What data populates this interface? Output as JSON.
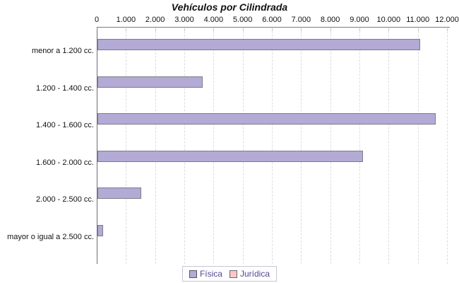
{
  "title": "Vehículos por Cilindrada",
  "legend": {
    "position": "bottom",
    "items": [
      {
        "label": "Física",
        "color": "#b3aad6",
        "border": "#55555f"
      },
      {
        "label": "Jurídica",
        "color": "#f9c7c7",
        "border": "#6a6a72"
      }
    ]
  },
  "chart_data": {
    "type": "bar",
    "orientation": "horizontal",
    "title": "Vehículos por Cilindrada",
    "categories": [
      "menor a 1.200 cc.",
      "1.200 - 1.400 cc.",
      "1.400 - 1.600 cc.",
      "1.600 - 2.000 cc.",
      "2.000 - 2.500 cc.",
      "mayor o igual a 2.500 cc."
    ],
    "series": [
      {
        "name": "Física",
        "color": "#b3aad6",
        "values": [
          11050,
          3600,
          11600,
          9100,
          1500,
          200
        ]
      },
      {
        "name": "Jurídica",
        "color": "#f9c7c7",
        "values": [
          0,
          0,
          0,
          0,
          0,
          0
        ]
      }
    ],
    "x_axis": {
      "position": "top",
      "min": 0,
      "max": 12000,
      "tick_step": 1000,
      "tick_labels": [
        "0",
        "1.000",
        "2.000",
        "3.000",
        "4.000",
        "5.000",
        "6.000",
        "7.000",
        "8.000",
        "9.000",
        "10.000",
        "11.000",
        "12.000"
      ]
    },
    "grid": true,
    "gridline_style": "dashed",
    "legend_position": "bottom",
    "ylabel": "",
    "xlabel": ""
  }
}
